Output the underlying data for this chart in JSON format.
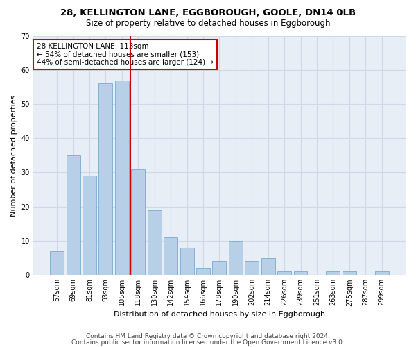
{
  "title1": "28, KELLINGTON LANE, EGGBOROUGH, GOOLE, DN14 0LB",
  "title2": "Size of property relative to detached houses in Eggborough",
  "xlabel": "Distribution of detached houses by size in Eggborough",
  "ylabel": "Number of detached properties",
  "categories": [
    "57sqm",
    "69sqm",
    "81sqm",
    "93sqm",
    "105sqm",
    "118sqm",
    "130sqm",
    "142sqm",
    "154sqm",
    "166sqm",
    "178sqm",
    "190sqm",
    "202sqm",
    "214sqm",
    "226sqm",
    "239sqm",
    "251sqm",
    "263sqm",
    "275sqm",
    "287sqm",
    "299sqm"
  ],
  "values": [
    7,
    35,
    29,
    56,
    57,
    31,
    19,
    11,
    8,
    2,
    4,
    10,
    4,
    5,
    1,
    1,
    0,
    1,
    1,
    0,
    1
  ],
  "bar_color": "#b8cfe8",
  "bar_edgecolor": "#7aaad0",
  "vline_x": 4.5,
  "vline_color": "#cc0000",
  "annotation_text": "28 KELLINGTON LANE: 113sqm\n← 54% of detached houses are smaller (153)\n44% of semi-detached houses are larger (124) →",
  "annotation_box_color": "#ffffff",
  "annotation_box_edgecolor": "#cc0000",
  "ylim": [
    0,
    70
  ],
  "yticks": [
    0,
    10,
    20,
    30,
    40,
    50,
    60,
    70
  ],
  "grid_color": "#d0d8e8",
  "background_color": "#e8eef6",
  "footer1": "Contains HM Land Registry data © Crown copyright and database right 2024.",
  "footer2": "Contains public sector information licensed under the Open Government Licence v3.0.",
  "title1_fontsize": 9.5,
  "title2_fontsize": 8.5,
  "xlabel_fontsize": 8,
  "ylabel_fontsize": 8,
  "tick_fontsize": 7,
  "annotation_fontsize": 7.5,
  "footer_fontsize": 6.5
}
